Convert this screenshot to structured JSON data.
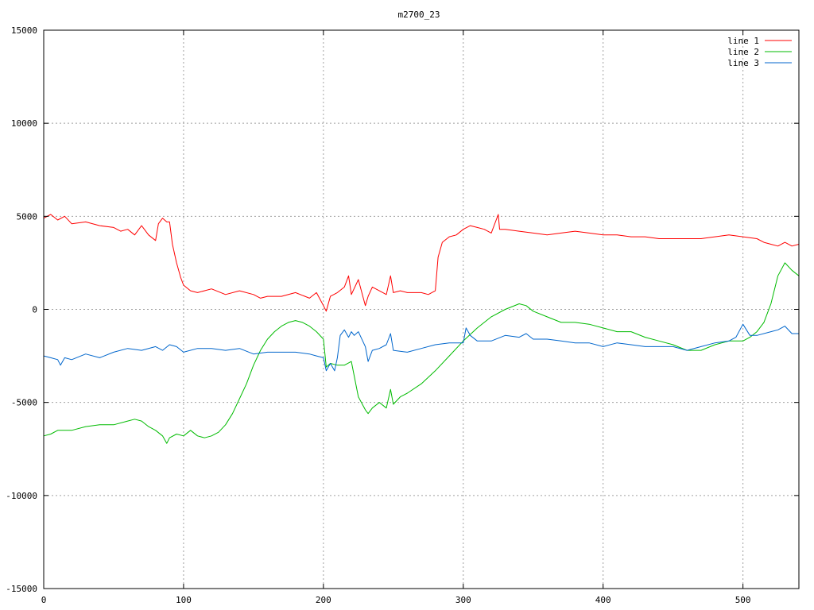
{
  "chart_data": {
    "type": "line",
    "title": "m2700_23",
    "xlim": [
      0,
      540
    ],
    "ylim": [
      -15000,
      15000
    ],
    "x_ticks": [
      0,
      100,
      200,
      300,
      400,
      500
    ],
    "y_ticks": [
      -15000,
      -10000,
      -5000,
      0,
      5000,
      10000,
      15000
    ],
    "grid": true,
    "legend_position": "top-right",
    "series": [
      {
        "name": "line 1",
        "color": "#ff0000",
        "x": [
          0,
          5,
          10,
          15,
          20,
          30,
          40,
          50,
          55,
          60,
          65,
          70,
          75,
          80,
          82,
          85,
          88,
          90,
          92,
          95,
          98,
          100,
          105,
          110,
          120,
          130,
          140,
          150,
          155,
          160,
          170,
          180,
          190,
          195,
          200,
          202,
          205,
          210,
          215,
          218,
          220,
          225,
          230,
          232,
          235,
          240,
          245,
          248,
          250,
          255,
          260,
          270,
          275,
          280,
          282,
          285,
          290,
          295,
          300,
          305,
          310,
          315,
          320,
          325,
          326,
          330,
          340,
          350,
          360,
          370,
          380,
          390,
          400,
          410,
          420,
          430,
          440,
          450,
          460,
          470,
          480,
          490,
          500,
          510,
          515,
          520,
          525,
          530,
          535,
          540
        ],
        "y": [
          4900,
          5100,
          4800,
          5000,
          4600,
          4700,
          4500,
          4400,
          4200,
          4300,
          4000,
          4500,
          4000,
          3700,
          4600,
          4900,
          4700,
          4700,
          3500,
          2500,
          1700,
          1300,
          1000,
          900,
          1100,
          800,
          1000,
          800,
          600,
          700,
          700,
          900,
          600,
          900,
          200,
          -100,
          700,
          900,
          1200,
          1800,
          800,
          1600,
          200,
          700,
          1200,
          1000,
          800,
          1800,
          900,
          1000,
          900,
          900,
          800,
          1000,
          2800,
          3600,
          3900,
          4000,
          4300,
          4500,
          4400,
          4300,
          4100,
          5100,
          4300,
          4300,
          4200,
          4100,
          4000,
          4100,
          4200,
          4100,
          4000,
          4000,
          3900,
          3900,
          3800,
          3800,
          3800,
          3800,
          3900,
          4000,
          3900,
          3800,
          3600,
          3500,
          3400,
          3600,
          3400,
          3500
        ]
      },
      {
        "name": "line 2",
        "color": "#00bb00",
        "x": [
          0,
          5,
          10,
          20,
          30,
          40,
          50,
          60,
          65,
          70,
          75,
          80,
          85,
          88,
          90,
          95,
          100,
          105,
          110,
          115,
          120,
          125,
          130,
          135,
          140,
          145,
          150,
          155,
          160,
          165,
          170,
          175,
          180,
          185,
          190,
          195,
          200,
          202,
          205,
          210,
          215,
          220,
          225,
          230,
          232,
          235,
          240,
          245,
          248,
          250,
          255,
          260,
          270,
          280,
          290,
          300,
          310,
          320,
          330,
          340,
          345,
          350,
          360,
          370,
          380,
          390,
          400,
          410,
          420,
          430,
          440,
          450,
          460,
          470,
          480,
          490,
          500,
          505,
          510,
          515,
          520,
          525,
          530,
          535,
          540
        ],
        "y": [
          -6800,
          -6700,
          -6500,
          -6500,
          -6300,
          -6200,
          -6200,
          -6000,
          -5900,
          -6000,
          -6300,
          -6500,
          -6800,
          -7200,
          -6900,
          -6700,
          -6800,
          -6500,
          -6800,
          -6900,
          -6800,
          -6600,
          -6200,
          -5600,
          -4800,
          -4000,
          -3000,
          -2200,
          -1600,
          -1200,
          -900,
          -700,
          -600,
          -700,
          -900,
          -1200,
          -1600,
          -3100,
          -2900,
          -3000,
          -3000,
          -2800,
          -4700,
          -5400,
          -5600,
          -5300,
          -5000,
          -5300,
          -4300,
          -5100,
          -4700,
          -4500,
          -4000,
          -3300,
          -2500,
          -1700,
          -1000,
          -400,
          0,
          300,
          200,
          -100,
          -400,
          -700,
          -700,
          -800,
          -1000,
          -1200,
          -1200,
          -1500,
          -1700,
          -1900,
          -2200,
          -2200,
          -1900,
          -1700,
          -1700,
          -1500,
          -1200,
          -700,
          300,
          1800,
          2500,
          2100,
          1800
        ]
      },
      {
        "name": "line 3",
        "color": "#0066cc",
        "x": [
          0,
          5,
          10,
          12,
          15,
          20,
          30,
          40,
          50,
          60,
          70,
          80,
          85,
          90,
          95,
          100,
          110,
          120,
          130,
          140,
          150,
          160,
          170,
          180,
          190,
          195,
          200,
          202,
          205,
          208,
          210,
          212,
          215,
          218,
          220,
          222,
          225,
          230,
          232,
          235,
          240,
          245,
          248,
          250,
          260,
          270,
          280,
          290,
          300,
          302,
          305,
          310,
          320,
          330,
          340,
          345,
          350,
          360,
          370,
          380,
          390,
          400,
          410,
          420,
          430,
          440,
          450,
          460,
          470,
          480,
          490,
          495,
          500,
          505,
          510,
          520,
          525,
          530,
          535,
          540
        ],
        "y": [
          -2500,
          -2600,
          -2700,
          -3000,
          -2600,
          -2700,
          -2400,
          -2600,
          -2300,
          -2100,
          -2200,
          -2000,
          -2200,
          -1900,
          -2000,
          -2300,
          -2100,
          -2100,
          -2200,
          -2100,
          -2400,
          -2300,
          -2300,
          -2300,
          -2400,
          -2500,
          -2600,
          -3300,
          -2900,
          -3300,
          -2600,
          -1400,
          -1100,
          -1500,
          -1200,
          -1400,
          -1200,
          -2000,
          -2800,
          -2200,
          -2100,
          -1900,
          -1300,
          -2200,
          -2300,
          -2100,
          -1900,
          -1800,
          -1800,
          -1000,
          -1400,
          -1700,
          -1700,
          -1400,
          -1500,
          -1300,
          -1600,
          -1600,
          -1700,
          -1800,
          -1800,
          -2000,
          -1800,
          -1900,
          -2000,
          -2000,
          -2000,
          -2200,
          -2000,
          -1800,
          -1700,
          -1500,
          -800,
          -1400,
          -1400,
          -1200,
          -1100,
          -900,
          -1300,
          -1300
        ]
      }
    ]
  }
}
